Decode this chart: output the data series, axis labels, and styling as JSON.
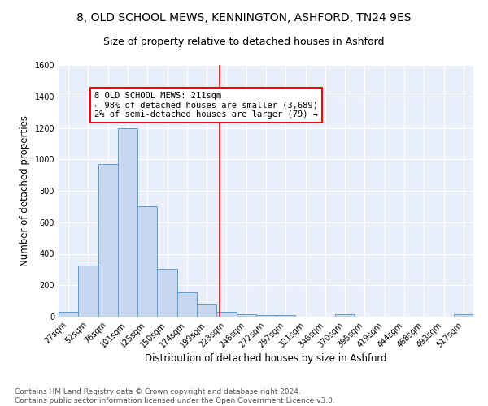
{
  "title": "8, OLD SCHOOL MEWS, KENNINGTON, ASHFORD, TN24 9ES",
  "subtitle": "Size of property relative to detached houses in Ashford",
  "xlabel": "Distribution of detached houses by size in Ashford",
  "ylabel": "Number of detached properties",
  "bar_labels": [
    "27sqm",
    "52sqm",
    "76sqm",
    "101sqm",
    "125sqm",
    "150sqm",
    "174sqm",
    "199sqm",
    "223sqm",
    "248sqm",
    "272sqm",
    "297sqm",
    "321sqm",
    "346sqm",
    "370sqm",
    "395sqm",
    "419sqm",
    "444sqm",
    "468sqm",
    "493sqm",
    "517sqm"
  ],
  "bar_values": [
    30,
    325,
    970,
    1200,
    700,
    305,
    155,
    80,
    30,
    15,
    12,
    10,
    0,
    0,
    15,
    0,
    0,
    0,
    0,
    0,
    15
  ],
  "bar_color": "#c5d8f0",
  "bar_edge_color": "#5b9bd5",
  "vline_x": 7.65,
  "vline_color": "red",
  "annotation_text": "8 OLD SCHOOL MEWS: 211sqm\n← 98% of detached houses are smaller (3,689)\n2% of semi-detached houses are larger (79) →",
  "annotation_box_color": "white",
  "annotation_box_edge_color": "red",
  "ylim": [
    0,
    1600
  ],
  "yticks": [
    0,
    200,
    400,
    600,
    800,
    1000,
    1200,
    1400,
    1600
  ],
  "footer": "Contains HM Land Registry data © Crown copyright and database right 2024.\nContains public sector information licensed under the Open Government Licence v3.0.",
  "bg_color": "#eaf0fb",
  "grid_color": "white",
  "title_fontsize": 10,
  "subtitle_fontsize": 9,
  "xlabel_fontsize": 8.5,
  "ylabel_fontsize": 8.5,
  "tick_fontsize": 7,
  "annotation_fontsize": 7.5,
  "footer_fontsize": 6.5
}
